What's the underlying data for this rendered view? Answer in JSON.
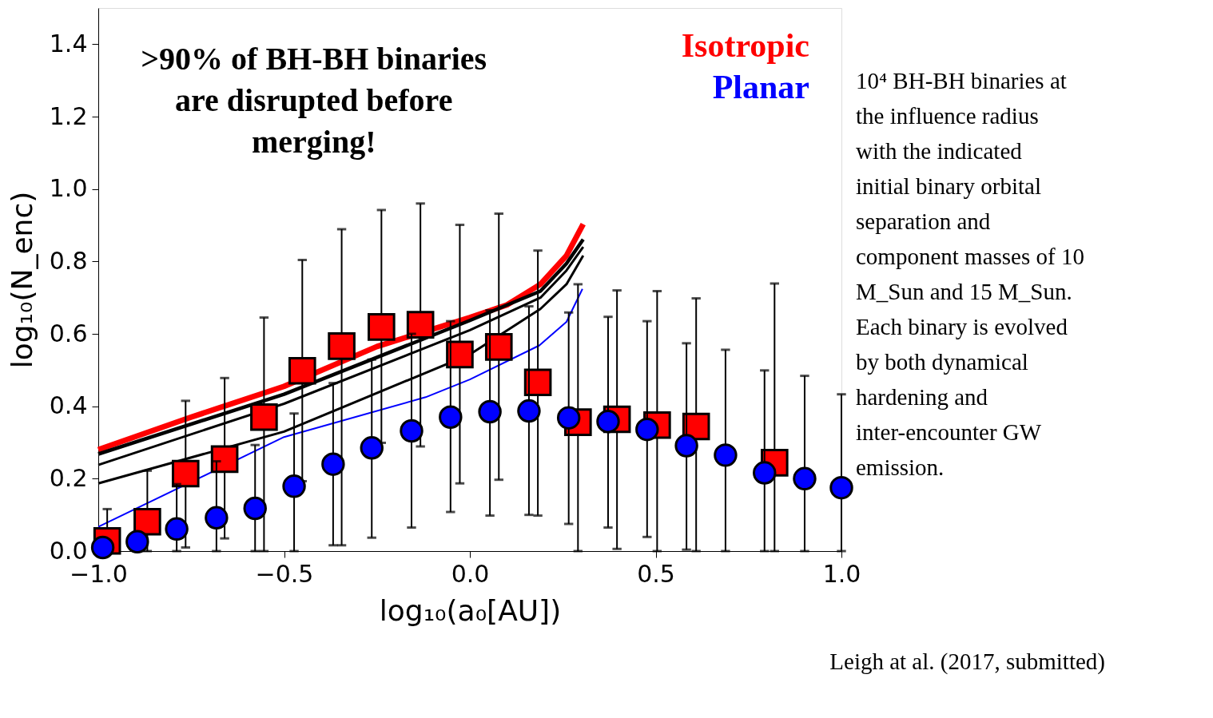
{
  "chart_data": {
    "type": "scatter",
    "xlabel": "log₁₀(a₀[AU])",
    "ylabel": "log₁₀(N_enc)",
    "xlim": [
      -1.0,
      1.0
    ],
    "xticks": [
      {
        "value": -1.0,
        "label": "−1.0"
      },
      {
        "value": -0.5,
        "label": "−0.5"
      },
      {
        "value": 0.0,
        "label": "0.0"
      },
      {
        "value": 0.5,
        "label": "0.5"
      },
      {
        "value": 1.0,
        "label": "1.0"
      }
    ],
    "ylim": [
      0.0,
      1.5
    ],
    "yticks": [
      {
        "value": 0.0,
        "label": "0.0"
      },
      {
        "value": 0.2,
        "label": "0.2"
      },
      {
        "value": 0.4,
        "label": "0.4"
      },
      {
        "value": 0.6,
        "label": "0.6"
      },
      {
        "value": 0.8,
        "label": "0.8"
      },
      {
        "value": 1.0,
        "label": "1.0"
      },
      {
        "value": 1.2,
        "label": "1.2"
      },
      {
        "value": 1.4,
        "label": "1.4"
      }
    ],
    "grid": false,
    "legend": "top right",
    "series": [
      {
        "type": "line",
        "color": "#ff0000",
        "x": [
          -1.0,
          -0.75,
          -0.5,
          -0.25,
          0.0,
          0.1,
          0.19,
          0.26,
          0.305
        ],
        "values": [
          0.28,
          0.37,
          0.455,
          0.565,
          0.645,
          0.68,
          0.737,
          0.816,
          0.903
        ]
      },
      {
        "type": "line",
        "color": "#000000",
        "x": [
          -1.0,
          -0.5,
          0.0,
          0.19,
          0.26,
          0.305
        ],
        "values": [
          0.268,
          0.433,
          0.637,
          0.718,
          0.794,
          0.861
        ]
      },
      {
        "type": "line",
        "color": "#000000",
        "x": [
          -1.0,
          -0.5,
          0.0,
          0.19,
          0.26,
          0.305
        ],
        "values": [
          0.238,
          0.407,
          0.61,
          0.7,
          0.775,
          0.84
        ]
      },
      {
        "type": "line",
        "color": "#000000",
        "x": [
          -1.0,
          -0.5,
          0.0,
          0.19,
          0.26,
          0.305
        ],
        "values": [
          0.187,
          0.33,
          0.543,
          0.669,
          0.737,
          0.816
        ]
      },
      {
        "type": "line",
        "color": "#0000ff",
        "x": [
          -1.0,
          -0.5,
          -0.119,
          0.0,
          0.187,
          0.26,
          0.303
        ],
        "values": [
          0.067,
          0.315,
          0.425,
          0.474,
          0.568,
          0.633,
          0.724
        ]
      },
      {
        "name": "Isotropic",
        "color": "#ff0000",
        "marker": "square",
        "x": [
          -0.976,
          -0.868,
          -0.765,
          -0.66,
          -0.554,
          -0.451,
          -0.345,
          -0.238,
          -0.133,
          -0.027,
          0.078,
          0.183,
          0.291,
          0.396,
          0.504,
          0.609,
          0.82
        ],
        "values": [
          0.028,
          0.081,
          0.214,
          0.254,
          0.37,
          0.498,
          0.566,
          0.619,
          0.625,
          0.543,
          0.564,
          0.466,
          0.356,
          0.364,
          0.348,
          0.344,
          0.244
        ],
        "errors": [
          [
            0.028,
            0.116
          ],
          [
            0,
            0.222
          ],
          [
            0.01,
            0.415
          ],
          [
            0.035,
            0.478
          ],
          [
            0,
            0.645
          ],
          [
            0.193,
            0.804
          ],
          [
            0.016,
            0.889
          ],
          [
            0.299,
            0.942
          ],
          [
            0.289,
            0.96
          ],
          [
            0.187,
            0.901
          ],
          [
            0.197,
            0.932
          ],
          [
            0.098,
            0.83
          ],
          [
            0,
            0.737
          ],
          [
            0.006,
            0.72
          ],
          [
            0,
            0.718
          ],
          [
            0,
            0.698
          ],
          [
            0,
            0.739
          ]
        ]
      },
      {
        "name": "Planar",
        "color": "#0000ff",
        "marker": "circle",
        "x": [
          -0.988,
          -0.895,
          -0.789,
          -0.682,
          -0.578,
          -0.473,
          -0.368,
          -0.264,
          -0.157,
          -0.052,
          0.054,
          0.159,
          0.266,
          0.372,
          0.477,
          0.583,
          0.688,
          0.793,
          0.901,
          1.0
        ],
        "values": [
          0.01,
          0.026,
          0.061,
          0.092,
          0.118,
          0.179,
          0.24,
          0.285,
          0.332,
          0.37,
          0.385,
          0.387,
          0.368,
          0.358,
          0.336,
          0.291,
          0.265,
          0.216,
          0.2,
          0.175
        ],
        "errors": [
          null,
          null,
          [
            0,
            0.185
          ],
          [
            0,
            0.248
          ],
          [
            0,
            0.293
          ],
          [
            0,
            0.38
          ],
          [
            0.016,
            0.464
          ],
          [
            0.037,
            0.529
          ],
          [
            0.065,
            0.6
          ],
          [
            0.108,
            0.635
          ],
          [
            0.098,
            0.665
          ],
          [
            0.1,
            0.676
          ],
          [
            0.075,
            0.659
          ],
          [
            0.065,
            0.647
          ],
          [
            0.039,
            0.635
          ],
          [
            0.004,
            0.574
          ],
          [
            0,
            0.556
          ],
          [
            0,
            0.499
          ],
          [
            0,
            0.484
          ],
          [
            0,
            0.433
          ]
        ]
      }
    ],
    "annotations": [
      ">90% of BH-BH binaries are disrupted before merging!",
      "10⁴ BH-BH binaries at the influence radius with the indicated initial binary orbital separation and component masses of 10 M_Sun and 15 M_Sun.\n\nEach binary is evolved by both dynamical hardening and inter-encounter GW emission.",
      "Leigh at al. (2017, submitted)"
    ]
  }
}
